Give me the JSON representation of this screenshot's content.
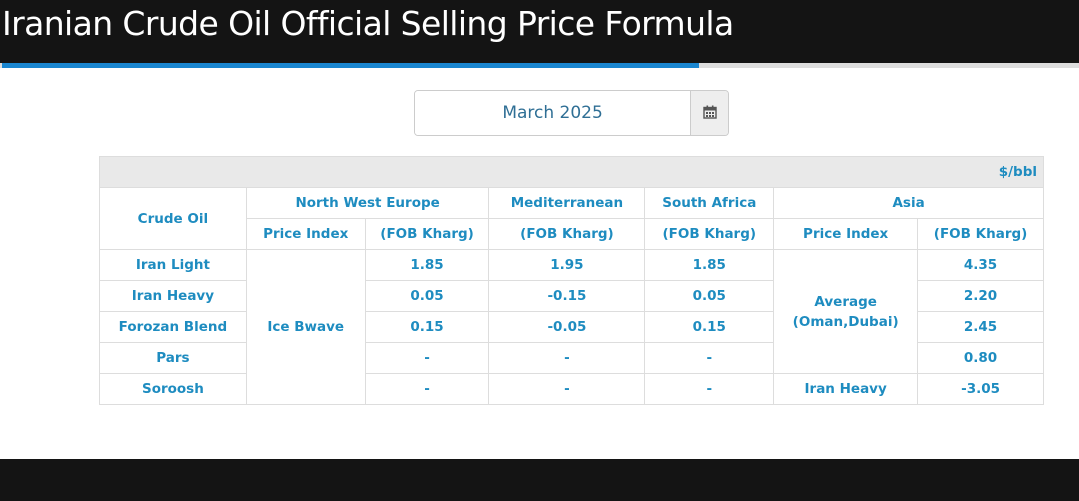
{
  "header": {
    "title": "Iranian Crude Oil Official Selling Price Formula"
  },
  "date_picker": {
    "value": "March 2025",
    "icon": "calendar-icon"
  },
  "table": {
    "unit": "$/bbl",
    "headers": {
      "crude_oil": "Crude Oil",
      "nwe": "North West Europe",
      "med": "Mediterranean",
      "safrica": "South Africa",
      "asia": "Asia"
    },
    "subheaders": {
      "nwe_index": "Price Index",
      "nwe_fob": "(FOB Kharg)",
      "med_fob": "(FOB Kharg)",
      "safrica_fob": "(FOB Kharg)",
      "asia_index": "Price Index",
      "asia_fob": "(FOB Kharg)"
    },
    "nwe_price_index": "Ice Bwave",
    "asia_price_index_main": "Average\n(Oman,Dubai)",
    "asia_price_index_soroosh": "Iran Heavy",
    "rows": [
      {
        "name": "Iran Light",
        "nwe": "1.85",
        "med": "1.95",
        "safrica": "1.85",
        "asia": "4.35"
      },
      {
        "name": "Iran Heavy",
        "nwe": "0.05",
        "med": "-0.15",
        "safrica": "0.05",
        "asia": "2.20"
      },
      {
        "name": "Forozan Blend",
        "nwe": "0.15",
        "med": "-0.05",
        "safrica": "0.15",
        "asia": "2.45"
      },
      {
        "name": "Pars",
        "nwe": "-",
        "med": "-",
        "safrica": "-",
        "asia": "0.80"
      },
      {
        "name": "Soroosh",
        "nwe": "-",
        "med": "-",
        "safrica": "-",
        "asia": "-3.05"
      }
    ]
  }
}
